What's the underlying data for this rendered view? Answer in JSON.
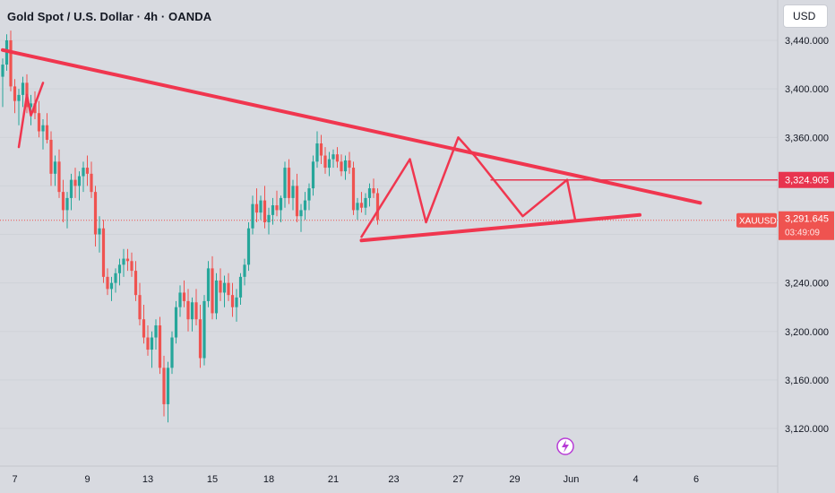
{
  "header": {
    "title": "Gold Spot / U.S. Dollar · 4h · OANDA",
    "currency": "USD"
  },
  "colors": {
    "background": "#d8dae0",
    "bull": "#26a69a",
    "bear": "#ef5350",
    "annotation": "#f0364f",
    "text": "#131722"
  },
  "symbol_label": "XAUUSD",
  "price_labels": {
    "resistance": "3,324.905",
    "last": "3,291.645",
    "countdown": "03:49:09"
  },
  "chart_data": {
    "type": "candlestick",
    "title": "Gold Spot / U.S. Dollar · 4h · OANDA",
    "ylim": [
      3100,
      3460
    ],
    "y_ticks": [
      {
        "value": 3440,
        "label": "3,440.000"
      },
      {
        "value": 3400,
        "label": "3,400.000"
      },
      {
        "value": 3360,
        "label": "3,360.000"
      },
      {
        "value": 3240,
        "label": "3,240.000"
      },
      {
        "value": 3200,
        "label": "3,200.000"
      },
      {
        "value": 3160,
        "label": "3,160.000"
      },
      {
        "value": 3120,
        "label": "3,120.000"
      }
    ],
    "x_ticks": [
      {
        "i": 3,
        "label": "7"
      },
      {
        "i": 21,
        "label": "9"
      },
      {
        "i": 36,
        "label": "13"
      },
      {
        "i": 52,
        "label": "15"
      },
      {
        "i": 66,
        "label": "18"
      },
      {
        "i": 82,
        "label": "21"
      },
      {
        "i": 97,
        "label": "23"
      },
      {
        "i": 113,
        "label": "27"
      },
      {
        "i": 127,
        "label": "29"
      },
      {
        "i": 141,
        "label": "Jun"
      },
      {
        "i": 157,
        "label": "4"
      },
      {
        "i": 172,
        "label": "6"
      }
    ],
    "candles": [
      [
        3410,
        3425,
        3385,
        3420
      ],
      [
        3420,
        3445,
        3415,
        3440
      ],
      [
        3440,
        3448,
        3398,
        3402
      ],
      [
        3402,
        3408,
        3380,
        3390
      ],
      [
        3390,
        3400,
        3370,
        3395
      ],
      [
        3395,
        3410,
        3385,
        3405
      ],
      [
        3405,
        3412,
        3380,
        3385
      ],
      [
        3385,
        3395,
        3370,
        3388
      ],
      [
        3388,
        3398,
        3375,
        3380
      ],
      [
        3380,
        3390,
        3360,
        3365
      ],
      [
        3365,
        3375,
        3350,
        3370
      ],
      [
        3370,
        3380,
        3355,
        3358
      ],
      [
        3358,
        3365,
        3320,
        3330
      ],
      [
        3330,
        3345,
        3320,
        3340
      ],
      [
        3340,
        3350,
        3310,
        3315
      ],
      [
        3315,
        3325,
        3290,
        3300
      ],
      [
        3300,
        3315,
        3285,
        3310
      ],
      [
        3310,
        3330,
        3300,
        3325
      ],
      [
        3325,
        3335,
        3310,
        3320
      ],
      [
        3320,
        3332,
        3308,
        3328
      ],
      [
        3328,
        3340,
        3315,
        3335
      ],
      [
        3335,
        3345,
        3320,
        3330
      ],
      [
        3330,
        3340,
        3310,
        3315
      ],
      [
        3315,
        3320,
        3270,
        3280
      ],
      [
        3280,
        3295,
        3265,
        3285
      ],
      [
        3285,
        3292,
        3240,
        3245
      ],
      [
        3245,
        3252,
        3230,
        3235
      ],
      [
        3235,
        3245,
        3225,
        3240
      ],
      [
        3240,
        3252,
        3232,
        3248
      ],
      [
        3248,
        3260,
        3238,
        3255
      ],
      [
        3255,
        3268,
        3245,
        3260
      ],
      [
        3260,
        3268,
        3250,
        3258
      ],
      [
        3258,
        3265,
        3245,
        3250
      ],
      [
        3250,
        3258,
        3225,
        3230
      ],
      [
        3230,
        3240,
        3205,
        3210
      ],
      [
        3210,
        3222,
        3190,
        3195
      ],
      [
        3195,
        3205,
        3180,
        3185
      ],
      [
        3185,
        3200,
        3170,
        3195
      ],
      [
        3195,
        3210,
        3185,
        3205
      ],
      [
        3205,
        3212,
        3165,
        3170
      ],
      [
        3170,
        3180,
        3130,
        3140
      ],
      [
        3140,
        3175,
        3125,
        3170
      ],
      [
        3170,
        3200,
        3165,
        3195
      ],
      [
        3195,
        3225,
        3190,
        3220
      ],
      [
        3220,
        3238,
        3212,
        3232
      ],
      [
        3232,
        3242,
        3220,
        3225
      ],
      [
        3225,
        3235,
        3200,
        3210
      ],
      [
        3210,
        3228,
        3200,
        3224
      ],
      [
        3224,
        3235,
        3205,
        3210
      ],
      [
        3210,
        3222,
        3170,
        3178
      ],
      [
        3178,
        3230,
        3172,
        3225
      ],
      [
        3225,
        3258,
        3220,
        3252
      ],
      [
        3252,
        3262,
        3210,
        3215
      ],
      [
        3215,
        3248,
        3210,
        3242
      ],
      [
        3242,
        3252,
        3225,
        3232
      ],
      [
        3232,
        3246,
        3220,
        3240
      ],
      [
        3240,
        3248,
        3225,
        3230
      ],
      [
        3230,
        3240,
        3212,
        3220
      ],
      [
        3220,
        3235,
        3208,
        3228
      ],
      [
        3228,
        3248,
        3222,
        3245
      ],
      [
        3245,
        3260,
        3238,
        3255
      ],
      [
        3255,
        3290,
        3250,
        3285
      ],
      [
        3285,
        3312,
        3280,
        3305
      ],
      [
        3305,
        3318,
        3290,
        3298
      ],
      [
        3298,
        3312,
        3292,
        3308
      ],
      [
        3308,
        3320,
        3285,
        3290
      ],
      [
        3290,
        3302,
        3280,
        3296
      ],
      [
        3296,
        3310,
        3288,
        3304
      ],
      [
        3304,
        3316,
        3295,
        3300
      ],
      [
        3300,
        3312,
        3290,
        3310
      ],
      [
        3310,
        3340,
        3302,
        3335
      ],
      [
        3335,
        3342,
        3305,
        3310
      ],
      [
        3310,
        3325,
        3300,
        3320
      ],
      [
        3320,
        3330,
        3290,
        3295
      ],
      [
        3295,
        3305,
        3282,
        3300
      ],
      [
        3300,
        3315,
        3292,
        3308
      ],
      [
        3308,
        3322,
        3300,
        3318
      ],
      [
        3318,
        3345,
        3312,
        3340
      ],
      [
        3340,
        3365,
        3335,
        3355
      ],
      [
        3355,
        3362,
        3338,
        3345
      ],
      [
        3345,
        3352,
        3330,
        3335
      ],
      [
        3335,
        3348,
        3328,
        3342
      ],
      [
        3342,
        3350,
        3335,
        3346
      ],
      [
        3346,
        3352,
        3335,
        3340
      ],
      [
        3340,
        3346,
        3328,
        3332
      ],
      [
        3332,
        3345,
        3325,
        3341
      ],
      [
        3341,
        3348,
        3330,
        3335
      ],
      [
        3335,
        3340,
        3296,
        3300
      ],
      [
        3300,
        3310,
        3292,
        3306
      ],
      [
        3306,
        3315,
        3298,
        3302
      ],
      [
        3302,
        3314,
        3296,
        3310
      ],
      [
        3310,
        3322,
        3303,
        3318
      ],
      [
        3318,
        3326,
        3310,
        3314
      ],
      [
        3314,
        3318,
        3288,
        3292
      ]
    ],
    "candle_x_start": 3,
    "candle_x_step": 4.5,
    "annotations": {
      "upper_trendline": [
        [
          0,
          3432
        ],
        [
          173,
          3306
        ]
      ],
      "lower_trendline": [
        [
          89,
          3275
        ],
        [
          158,
          3296
        ]
      ],
      "resistance_level": 3324.905,
      "resistance_line_from": 121,
      "zigzag": [
        [
          89,
          3278
        ],
        [
          101,
          3342
        ],
        [
          105,
          3290
        ],
        [
          113,
          3360
        ],
        [
          117,
          3345
        ],
        [
          129,
          3295
        ],
        [
          140,
          3325
        ],
        [
          142,
          3292
        ]
      ],
      "left_mark": [
        [
          4,
          3352
        ],
        [
          6,
          3395
        ],
        [
          7,
          3378
        ],
        [
          10,
          3405
        ]
      ],
      "current_price": 3291.645
    }
  }
}
